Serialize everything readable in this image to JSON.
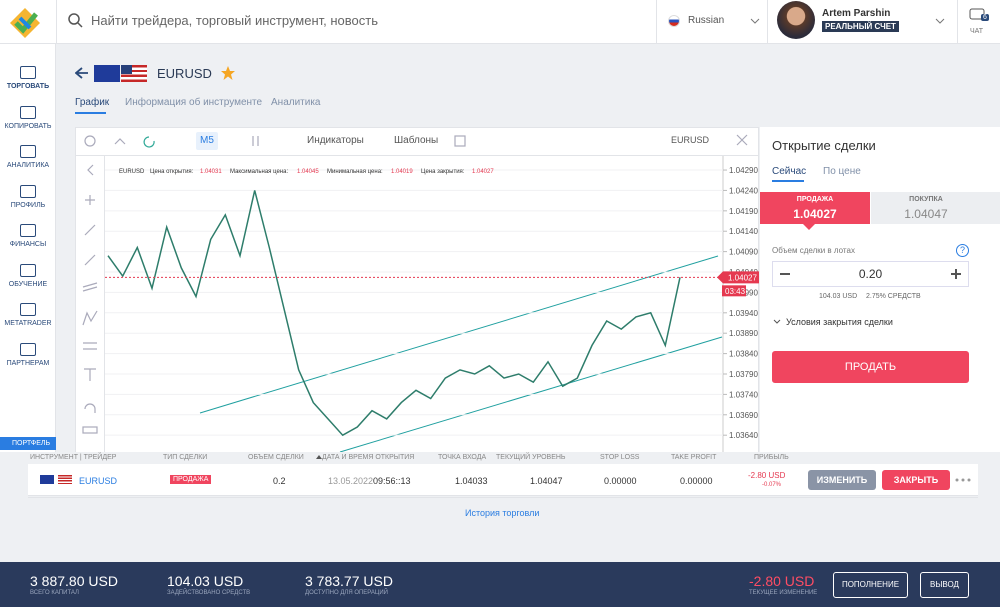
{
  "header": {
    "search_placeholder": "Найти трейдера, торговый инструмент, новость",
    "language": "Russian",
    "user_name": "Artem Parshin",
    "account_type": "РЕАЛЬНЫЙ СЧЕТ",
    "chat": "ЧАТ",
    "chat_badge": "6"
  },
  "sidebar": {
    "items": [
      "ТОРГОВАТЬ",
      "КОПИРОВАТЬ",
      "АНАЛИТИКА",
      "ПРОФИЛЬ",
      "ФИНАНСЫ",
      "ОБУЧЕНИЕ",
      "METATRADER",
      "ПАРТНЕРАМ"
    ],
    "portfolio": "ПОРТФЕЛЬ"
  },
  "instrument": {
    "symbol": "EURUSD",
    "tabs": [
      "График",
      "Информация об инструменте",
      "Аналитика"
    ]
  },
  "chart_toolbar": {
    "timeframe": "M5",
    "indicators": "Индикаторы",
    "templates": "Шаблоны",
    "symbol": "EURUSD"
  },
  "chart_data": {
    "type": "line",
    "info": {
      "symbol": "EURUSD",
      "open_label": "Цена открытия:",
      "open": 1.04031,
      "high_label": "Максимальная цена:",
      "high": 1.04045,
      "low_label": "Минимальная цена:",
      "low": 1.04019,
      "close_label": "Цена закрытия:",
      "close": 1.04027
    },
    "values": [
      1.0408,
      1.0403,
      1.041,
      1.04,
      1.0415,
      1.0405,
      1.0398,
      1.0412,
      1.0418,
      1.0408,
      1.0424,
      1.041,
      1.0395,
      1.038,
      1.0372,
      1.0368,
      1.0364,
      1.0366,
      1.037,
      1.0368,
      1.0372,
      1.0375,
      1.0373,
      1.0378,
      1.038,
      1.0379,
      1.0381,
      1.0378,
      1.0379,
      1.0377,
      1.0382,
      1.0376,
      1.0378,
      1.0386,
      1.0392,
      1.039,
      1.0393,
      1.0394,
      1.0386,
      1.04027
    ],
    "color": "#2e7d6b",
    "ylim": [
      1.036,
      1.0432
    ],
    "yticks": [
      {
        "value": 1.0429,
        "label": "1.04290"
      },
      {
        "value": 1.0424,
        "label": "1.04240"
      },
      {
        "value": 1.0419,
        "label": "1.04190"
      },
      {
        "value": 1.0414,
        "label": "1.04140"
      },
      {
        "value": 1.0409,
        "label": "1.04090"
      },
      {
        "value": 1.0404,
        "label": "1.04040"
      },
      {
        "value": 1.0399,
        "label": "1.03990"
      },
      {
        "value": 1.0394,
        "label": "1.03940"
      },
      {
        "value": 1.0389,
        "label": "1.03890"
      },
      {
        "value": 1.0384,
        "label": "1.03840"
      },
      {
        "value": 1.0379,
        "label": "1.03790"
      },
      {
        "value": 1.0374,
        "label": "1.03740"
      },
      {
        "value": 1.0369,
        "label": "1.03690"
      },
      {
        "value": 1.0364,
        "label": "1.03640"
      }
    ],
    "current_price": 1.04027,
    "timer": "03:43"
  },
  "trade_panel": {
    "title": "Открытие сделки",
    "tabs": [
      "Сейчас",
      "По цене"
    ],
    "sell_label": "ПРОДАЖА",
    "sell_price": "1.04027",
    "buy_label": "ПОКУПКА",
    "buy_price": "1.04047",
    "volume_label": "Объем сделки в лотах",
    "help": "?",
    "volume": "0.20",
    "margin": "104.03 USD",
    "margin_pct": "2.75% СРЕДСТВ",
    "close_conditions": "Условия закрытия сделки",
    "submit": "ПРОДАТЬ"
  },
  "positions": {
    "headers": [
      "ИНСТРУМЕНТ | ТРЕЙДЕР",
      "ТИП СДЕЛКИ",
      "ОБЪЕМ СДЕЛКИ",
      "ДАТА И ВРЕМЯ ОТКРЫТИЯ",
      "ТОЧКА ВХОДА",
      "ТЕКУЩИЙ УРОВЕНЬ",
      "STOP LOSS",
      "TAKE PROFIT",
      "ПРИБЫЛЬ"
    ],
    "row": {
      "symbol": "EURUSD",
      "type": "ПРОДАЖА",
      "volume": "0.2",
      "date": "13.05.2022",
      "time": "09:56::13",
      "entry": "1.04033",
      "current": "1.04047",
      "stop_loss": "0.00000",
      "take_profit": "0.00000",
      "profit": "-2.80 USD",
      "profit_pct": "-0.07%",
      "edit": "ИЗМЕНИТЬ",
      "close": "ЗАКРЫТЬ"
    },
    "history": "История торговли"
  },
  "footer": {
    "items": [
      {
        "value": "3 887.80 USD",
        "label": "ВСЕГО КАПИТАЛ"
      },
      {
        "value": "104.03 USD",
        "label": "ЗАДЕЙСТВОВАНО СРЕДСТВ"
      },
      {
        "value": "3 783.77 USD",
        "label": "ДОСТУПНО ДЛЯ ОПЕРАЦИЙ"
      },
      {
        "value": "-2.80 USD",
        "label": "ТЕКУЩЕЕ ИЗМЕНЕНИЕ"
      }
    ],
    "deposit": "ПОПОЛНЕНИЕ",
    "withdraw": "ВЫВОД"
  }
}
